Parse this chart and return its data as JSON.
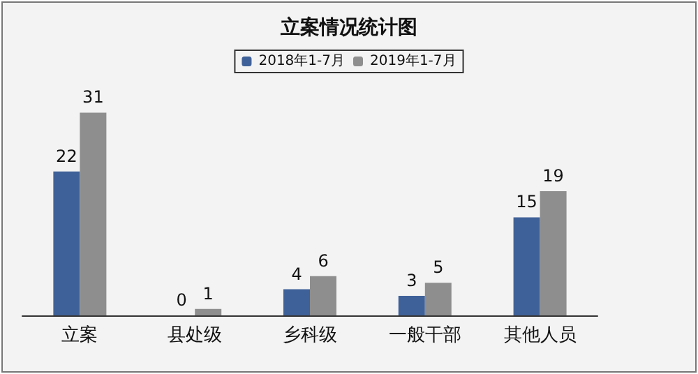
{
  "chart_data": {
    "type": "bar",
    "title": "立案情况统计图",
    "categories": [
      "立案",
      "县处级",
      "乡科级",
      "一般干部",
      "其他人员"
    ],
    "series": [
      {
        "name": "2018年1-7月",
        "color": "#3f6199",
        "values": [
          22,
          0,
          4,
          3,
          15
        ]
      },
      {
        "name": "2019年1-7月",
        "color": "#8e8e8e",
        "values": [
          31,
          1,
          6,
          5,
          19
        ]
      }
    ],
    "data_labels": true,
    "legend": "top",
    "grid": false
  }
}
